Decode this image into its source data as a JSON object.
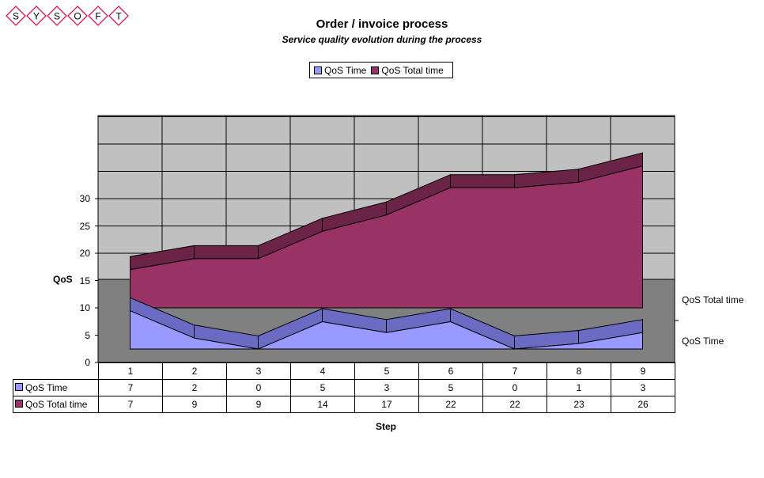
{
  "logo": {
    "letters": [
      "S",
      "Y",
      "S",
      "O",
      "F",
      "T"
    ],
    "color": "#d4145a"
  },
  "chart_data": {
    "type": "area",
    "style": "3d-stacked-depth",
    "title": "Order / invoice process",
    "subtitle": "Service quality evolution during the process",
    "xlabel": "Step",
    "ylabel": "QoS",
    "categories": [
      "1",
      "2",
      "3",
      "4",
      "5",
      "6",
      "7",
      "8",
      "9"
    ],
    "yticks": [
      "0",
      "5",
      "10",
      "15",
      "20",
      "25",
      "30"
    ],
    "ylim": [
      0,
      45
    ],
    "grid": true,
    "legend_position": "top",
    "series": [
      {
        "name": "QoS Time",
        "values": [
          7,
          2,
          0,
          5,
          3,
          5,
          0,
          1,
          3
        ],
        "color": "#9999ff",
        "top_color": "#6b6bc4"
      },
      {
        "name": "QoS Total time",
        "values": [
          7,
          9,
          9,
          14,
          17,
          22,
          22,
          23,
          26
        ],
        "color": "#993366",
        "top_color": "#6b2347"
      }
    ],
    "wall_color": "#c0c0c0",
    "floor_color": "#808080"
  }
}
